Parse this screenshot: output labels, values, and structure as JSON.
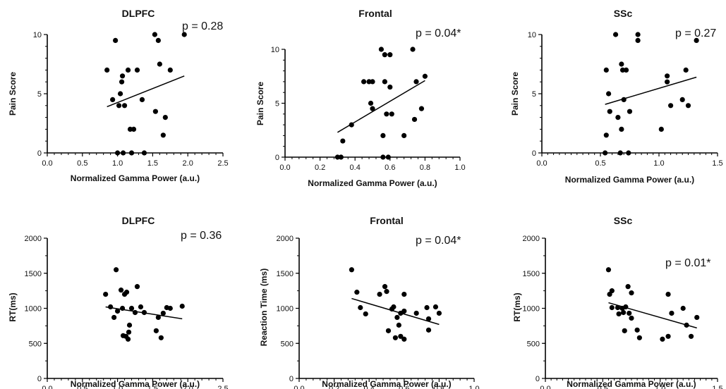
{
  "chart_data": [
    {
      "type": "scatter",
      "title": "DLPFC",
      "xlabel": "Normalized Gamma Power (a.u.)",
      "ylabel": "Pain Score",
      "annotation": "p = 0.28",
      "xlim": [
        0,
        2.5
      ],
      "ylim": [
        0,
        10
      ],
      "xticks": [
        "0.0",
        "0.5",
        "1.0",
        "1.5",
        "2.0",
        "2.5"
      ],
      "yticks": [
        "0",
        "5",
        "10"
      ],
      "points": [
        [
          0.85,
          7.0
        ],
        [
          0.93,
          4.5
        ],
        [
          0.97,
          9.5
        ],
        [
          1.0,
          0.0
        ],
        [
          1.02,
          4.0
        ],
        [
          1.04,
          5.0
        ],
        [
          1.06,
          6.0
        ],
        [
          1.07,
          6.5
        ],
        [
          1.08,
          0.0
        ],
        [
          1.1,
          4.0
        ],
        [
          1.15,
          7.0
        ],
        [
          1.18,
          2.0
        ],
        [
          1.2,
          0.0
        ],
        [
          1.23,
          2.0
        ],
        [
          1.28,
          7.0
        ],
        [
          1.35,
          4.5
        ],
        [
          1.38,
          0.0
        ],
        [
          1.53,
          10.0
        ],
        [
          1.54,
          3.5
        ],
        [
          1.58,
          9.5
        ],
        [
          1.6,
          7.5
        ],
        [
          1.65,
          1.5
        ],
        [
          1.68,
          3.0
        ],
        [
          1.75,
          7.0
        ],
        [
          1.95,
          10.0
        ]
      ],
      "fit": [
        [
          0.85,
          3.9
        ],
        [
          1.95,
          6.5
        ]
      ]
    },
    {
      "type": "scatter",
      "title": "Frontal",
      "xlabel": "Normalized Gamma Power (a.u.)",
      "ylabel": "Pain Score",
      "annotation": "p = 0.04*",
      "xlim": [
        0,
        1.0
      ],
      "ylim": [
        0,
        10
      ],
      "xticks": [
        "0.0",
        "0.2",
        "0.4",
        "0.6",
        "0.8",
        "1.0"
      ],
      "yticks": [
        "0",
        "5",
        "10"
      ],
      "points": [
        [
          0.3,
          0.0
        ],
        [
          0.32,
          0.0
        ],
        [
          0.33,
          1.5
        ],
        [
          0.38,
          3.0
        ],
        [
          0.45,
          7.0
        ],
        [
          0.48,
          7.0
        ],
        [
          0.49,
          5.0
        ],
        [
          0.5,
          4.5
        ],
        [
          0.5,
          7.0
        ],
        [
          0.55,
          10.0
        ],
        [
          0.56,
          2.0
        ],
        [
          0.56,
          0.0
        ],
        [
          0.57,
          9.5
        ],
        [
          0.57,
          7.0
        ],
        [
          0.58,
          4.0
        ],
        [
          0.59,
          0.0
        ],
        [
          0.6,
          6.5
        ],
        [
          0.6,
          9.5
        ],
        [
          0.61,
          4.0
        ],
        [
          0.68,
          2.0
        ],
        [
          0.73,
          10.0
        ],
        [
          0.74,
          3.5
        ],
        [
          0.75,
          7.0
        ],
        [
          0.78,
          4.5
        ],
        [
          0.8,
          7.5
        ]
      ],
      "fit": [
        [
          0.3,
          2.3
        ],
        [
          0.8,
          7.1
        ]
      ]
    },
    {
      "type": "scatter",
      "title": "SSc",
      "xlabel": "Normalized Gamma Power (a.u.)",
      "ylabel": "Pain Score",
      "annotation": "p = 0.27",
      "xlim": [
        0,
        1.5
      ],
      "ylim": [
        0,
        10
      ],
      "xticks": [
        "0.0",
        "0.5",
        "1.0",
        "1.5"
      ],
      "yticks": [
        "0",
        "5",
        "10"
      ],
      "points": [
        [
          0.54,
          0.0
        ],
        [
          0.55,
          7.0
        ],
        [
          0.55,
          1.5
        ],
        [
          0.57,
          5.0
        ],
        [
          0.58,
          3.5
        ],
        [
          0.63,
          10.0
        ],
        [
          0.65,
          3.0
        ],
        [
          0.67,
          0.0
        ],
        [
          0.68,
          7.5
        ],
        [
          0.68,
          2.0
        ],
        [
          0.69,
          7.0
        ],
        [
          0.7,
          4.5
        ],
        [
          0.72,
          7.0
        ],
        [
          0.74,
          0.0
        ],
        [
          0.75,
          3.5
        ],
        [
          0.82,
          10.0
        ],
        [
          0.82,
          9.5
        ],
        [
          1.02,
          2.0
        ],
        [
          1.07,
          6.0
        ],
        [
          1.07,
          6.5
        ],
        [
          1.1,
          4.0
        ],
        [
          1.2,
          4.5
        ],
        [
          1.23,
          7.0
        ],
        [
          1.25,
          4.0
        ],
        [
          1.32,
          9.5
        ]
      ],
      "fit": [
        [
          0.54,
          4.1
        ],
        [
          1.32,
          6.4
        ]
      ]
    },
    {
      "type": "scatter",
      "title": "DLPFC",
      "xlabel": "Normalized Gamma Power (a.u.)",
      "ylabel": "RT(ms)",
      "annotation": "p = 0.36",
      "xlim": [
        0,
        2.5
      ],
      "ylim": [
        0,
        2000
      ],
      "xticks": [
        "0.0",
        "0.5",
        "1.0",
        "1.5",
        "2.0",
        "2.5"
      ],
      "yticks": [
        "0",
        "500",
        "1000",
        "1500",
        "2000"
      ],
      "points": [
        [
          0.83,
          1200
        ],
        [
          0.9,
          1020
        ],
        [
          0.95,
          870
        ],
        [
          0.98,
          1550
        ],
        [
          1.0,
          960
        ],
        [
          1.05,
          1260
        ],
        [
          1.07,
          1000
        ],
        [
          1.08,
          610
        ],
        [
          1.1,
          1200
        ],
        [
          1.12,
          600
        ],
        [
          1.13,
          1230
        ],
        [
          1.15,
          560
        ],
        [
          1.16,
          660
        ],
        [
          1.17,
          760
        ],
        [
          1.2,
          1000
        ],
        [
          1.25,
          940
        ],
        [
          1.28,
          1310
        ],
        [
          1.33,
          1020
        ],
        [
          1.38,
          940
        ],
        [
          1.55,
          680
        ],
        [
          1.58,
          870
        ],
        [
          1.62,
          580
        ],
        [
          1.65,
          930
        ],
        [
          1.7,
          1010
        ],
        [
          1.75,
          1000
        ],
        [
          1.92,
          1030
        ]
      ],
      "fit": [
        [
          0.83,
          1020
        ],
        [
          1.92,
          850
        ]
      ]
    },
    {
      "type": "scatter",
      "title": "Frontal",
      "xlabel": "Normalized Gamma Power (a.u.)",
      "ylabel": "Reaction Time (ms)",
      "annotation": "p = 0.04*",
      "xlim": [
        0,
        1.0
      ],
      "ylim": [
        0,
        2000
      ],
      "xticks": [
        "0.0",
        "0.2",
        "0.4",
        "0.6",
        "0.8",
        "1.0"
      ],
      "yticks": [
        "0",
        "500",
        "1000",
        "1500",
        "2000"
      ],
      "points": [
        [
          0.3,
          1550
        ],
        [
          0.33,
          1230
        ],
        [
          0.35,
          1010
        ],
        [
          0.38,
          920
        ],
        [
          0.46,
          1200
        ],
        [
          0.49,
          1310
        ],
        [
          0.5,
          1240
        ],
        [
          0.51,
          680
        ],
        [
          0.53,
          990
        ],
        [
          0.54,
          1020
        ],
        [
          0.55,
          580
        ],
        [
          0.56,
          870
        ],
        [
          0.57,
          760
        ],
        [
          0.58,
          930
        ],
        [
          0.58,
          600
        ],
        [
          0.6,
          960
        ],
        [
          0.6,
          560
        ],
        [
          0.6,
          1200
        ],
        [
          0.67,
          930
        ],
        [
          0.73,
          1010
        ],
        [
          0.74,
          690
        ],
        [
          0.74,
          850
        ],
        [
          0.78,
          1020
        ],
        [
          0.8,
          930
        ]
      ],
      "fit": [
        [
          0.3,
          1140
        ],
        [
          0.8,
          770
        ]
      ]
    },
    {
      "type": "scatter",
      "title": "SSc",
      "xlabel": "Normalized Gamma Power (a.u.)",
      "ylabel": "RT(ms)",
      "annotation": "p = 0.01*",
      "xlim": [
        0,
        1.5
      ],
      "ylim": [
        0,
        2000
      ],
      "xticks": [
        "0.0",
        "0.5",
        "1.0",
        "1.5"
      ],
      "yticks": [
        "0",
        "500",
        "1000",
        "1500",
        "2000"
      ],
      "points": [
        [
          0.55,
          1550
        ],
        [
          0.56,
          1200
        ],
        [
          0.58,
          1250
        ],
        [
          0.58,
          1010
        ],
        [
          0.63,
          1010
        ],
        [
          0.64,
          920
        ],
        [
          0.67,
          1000
        ],
        [
          0.68,
          940
        ],
        [
          0.69,
          680
        ],
        [
          0.7,
          1020
        ],
        [
          0.72,
          1310
        ],
        [
          0.73,
          930
        ],
        [
          0.75,
          1220
        ],
        [
          0.75,
          860
        ],
        [
          0.8,
          690
        ],
        [
          0.82,
          580
        ],
        [
          1.02,
          560
        ],
        [
          1.07,
          1200
        ],
        [
          1.07,
          600
        ],
        [
          1.1,
          930
        ],
        [
          1.2,
          1000
        ],
        [
          1.23,
          760
        ],
        [
          1.27,
          600
        ],
        [
          1.32,
          870
        ]
      ],
      "fit": [
        [
          0.55,
          1080
        ],
        [
          1.32,
          720
        ]
      ]
    }
  ]
}
